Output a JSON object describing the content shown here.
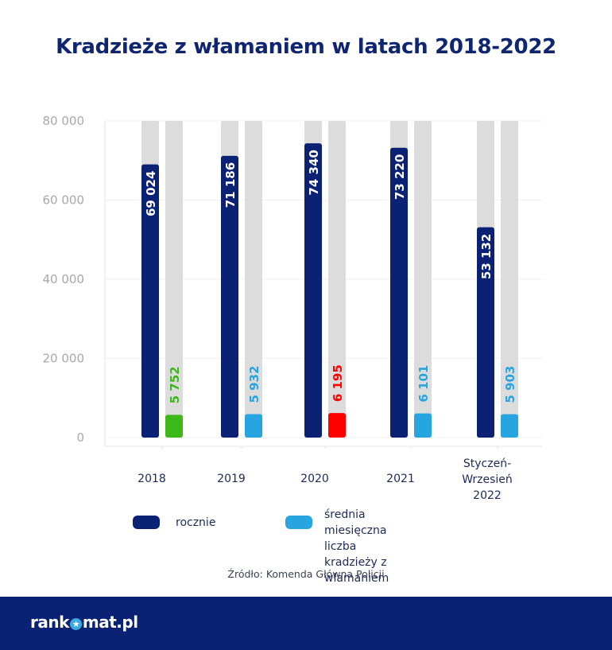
{
  "title": "Kradzieże z włamaniem w latach 2018-2022",
  "chart_data": {
    "type": "bar",
    "title": "Kradzieże z włamaniem w latach 2018-2022",
    "xlabel": "",
    "ylabel": "",
    "ylim": [
      0,
      80000
    ],
    "yticks": [
      0,
      20000,
      40000,
      60000,
      80000
    ],
    "ytick_labels": [
      "0",
      "20 000",
      "40 000",
      "60 000",
      "80 000"
    ],
    "grid": true,
    "categories": [
      "2018",
      "2019",
      "2020",
      "2021",
      "Styczeń-\nWrzesień\n2022"
    ],
    "series": [
      {
        "name": "rocznie",
        "color": "#0b2174",
        "values": [
          69024,
          71186,
          74340,
          73220,
          53132
        ],
        "labels": [
          "69 024",
          "71 186",
          "74 340",
          "73 220",
          "53 132"
        ],
        "label_color": "#ffffff"
      },
      {
        "name": "średnia miesięczna liczba kradzieży z włamaniem",
        "color": "#27a5e0",
        "values": [
          5752,
          5932,
          6195,
          6101,
          5903
        ],
        "labels": [
          "5 752",
          "5 932",
          "6 195",
          "6 101",
          "5 903"
        ],
        "bar_colors": [
          "#3cb819",
          "#27a5e0",
          "#ff0000",
          "#27a5e0",
          "#27a5e0"
        ]
      }
    ],
    "background_bar_color": "#dcdcdc",
    "legend_position": "bottom"
  },
  "legend": {
    "items": [
      {
        "label": "rocznie",
        "color": "#0b2174"
      },
      {
        "label": "średnia miesięczna\nliczba kradzieży z włamaniem",
        "color": "#27a5e0"
      }
    ]
  },
  "source": "Źródło: Komenda Główna Policji",
  "footer": {
    "logo_left": "rank",
    "logo_star": "★",
    "logo_right": "mat.pl"
  }
}
